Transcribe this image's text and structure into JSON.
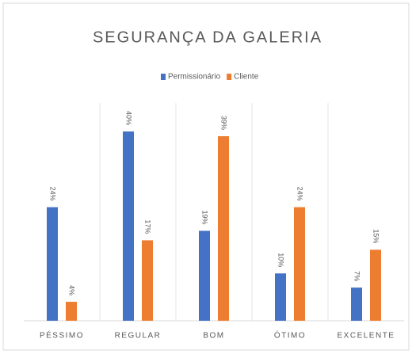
{
  "chart_data": {
    "type": "bar",
    "title": "SEGURANÇA DA GALERIA",
    "categories": [
      "PÉSSIMO",
      "REGULAR",
      "BOM",
      "ÓTIMO",
      "EXCELENTE"
    ],
    "series": [
      {
        "name": "Permissionário",
        "color": "#4472c4",
        "values": [
          24,
          40,
          19,
          10,
          7
        ],
        "value_labels": [
          "24%",
          "40%",
          "19%",
          "10%",
          "7%"
        ]
      },
      {
        "name": "Cliente",
        "color": "#ed7d31",
        "values": [
          4,
          17,
          39,
          24,
          15
        ],
        "value_labels": [
          "4%",
          "17%",
          "39%",
          "24%",
          "15%"
        ]
      }
    ],
    "legend": "top"
  }
}
